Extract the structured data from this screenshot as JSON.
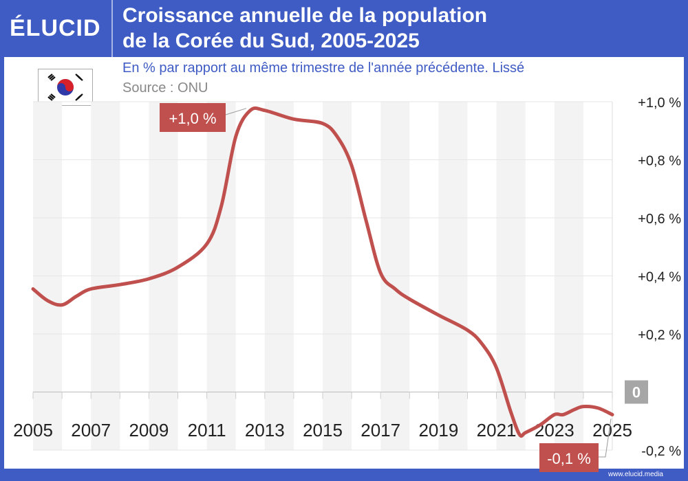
{
  "header": {
    "logo": "ÉLUCID",
    "title_line1": "Croissance annuelle de la population",
    "title_line2": "de la Corée du Sud, 2005-2025",
    "subtitle": "En % par rapport au même trimestre de l'année précédente. Lissé",
    "source": "Source : ONU",
    "footer": "www.elucid.media"
  },
  "colors": {
    "brand": "#3f5bc4",
    "series": "#c0504d",
    "stripe": "#f3f3f3"
  },
  "flag_icon": "south-korea-flag",
  "chart_data": {
    "type": "line",
    "title": "Croissance annuelle de la population de la Corée du Sud, 2005-2025",
    "xlim": [
      2005,
      2025
    ],
    "ylim": [
      -0.2,
      1.0
    ],
    "x_tick_labels": [
      "2005",
      "2007",
      "2009",
      "2011",
      "2013",
      "2015",
      "2017",
      "2019",
      "2021",
      "2023",
      "2025"
    ],
    "y_ticks": [
      1.0,
      0.8,
      0.6,
      0.4,
      0.2,
      0,
      -0.2
    ],
    "y_tick_labels": [
      "+1,0 %",
      "+0,8 %",
      "+0,6 %",
      "+0,4 %",
      "+0,2 %",
      "0",
      "-0,2 %"
    ],
    "grid": true,
    "annotations": [
      {
        "label": "+1,0 %",
        "x": 2012.6,
        "y": 0.97
      },
      {
        "label": "-0,1 %",
        "x": 2025,
        "y": -0.08
      }
    ],
    "series": [
      {
        "x": [
          2005,
          2005.5,
          2006,
          2006.5,
          2007,
          2008,
          2009,
          2010,
          2011,
          2011.5,
          2012,
          2012.5,
          2013,
          2014,
          2015,
          2015.5,
          2016,
          2016.5,
          2017,
          2017.5,
          2018,
          2019,
          2020,
          2020.5,
          2021,
          2021.5,
          2021.8,
          2022,
          2022.5,
          2023,
          2023.3,
          2023.7,
          2024,
          2024.5,
          2025
        ],
        "values": [
          0.355,
          0.315,
          0.3,
          0.33,
          0.355,
          0.37,
          0.39,
          0.43,
          0.51,
          0.64,
          0.88,
          0.97,
          0.97,
          0.94,
          0.925,
          0.88,
          0.78,
          0.59,
          0.41,
          0.355,
          0.32,
          0.265,
          0.213,
          0.166,
          0.083,
          -0.07,
          -0.147,
          -0.14,
          -0.114,
          -0.078,
          -0.078,
          -0.06,
          -0.05,
          -0.055,
          -0.078
        ]
      }
    ]
  }
}
